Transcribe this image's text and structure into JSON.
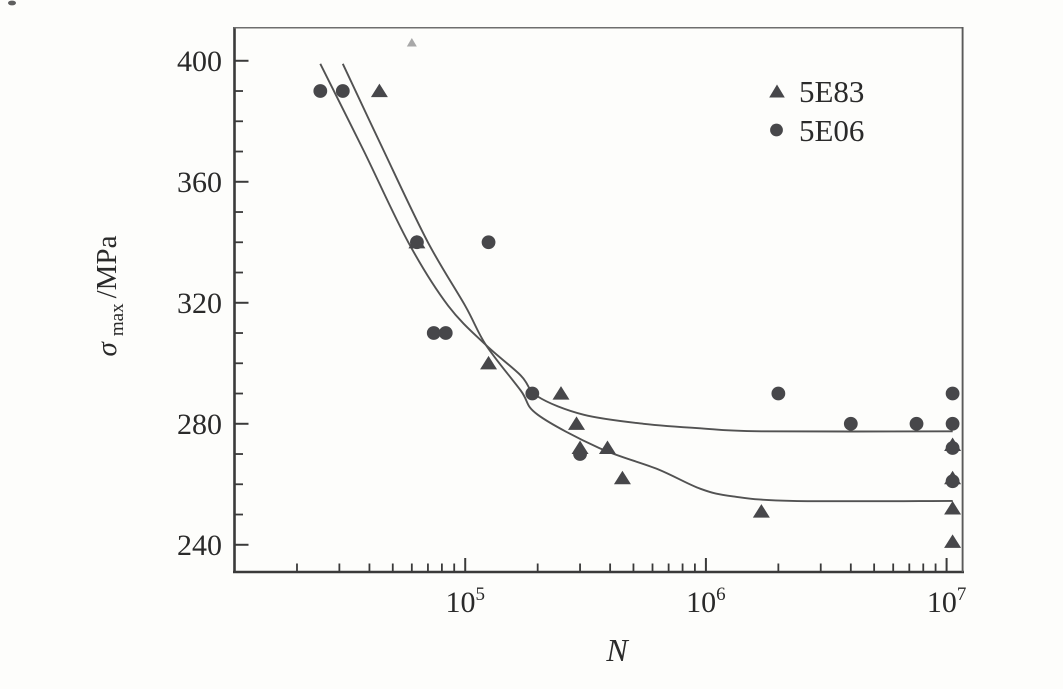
{
  "figure": {
    "background": "#fdfdfb",
    "axis_color": "#3a3a3a",
    "text_color": "#2a2a2a",
    "marker_color": "#47474a",
    "curve_color": "#525252",
    "faint_marker_color": "#a8a8a8",
    "y_axis": {
      "sigma": "σ",
      "sigma_sub": "max",
      "unit": "/MPa"
    },
    "x_axis": {
      "title": "N"
    }
  },
  "chart_data": {
    "type": "scatter",
    "title": "",
    "xlabel": "N",
    "ylabel": "σmax/MPa",
    "x_scale": "log",
    "xlim": [
      11000,
      11700000
    ],
    "ylim": [
      231,
      411
    ],
    "x_major_ticks": [
      100000,
      1000000,
      10000000
    ],
    "x_minor_tick_multipliers": [
      2,
      3,
      4,
      5,
      6,
      7,
      8,
      9
    ],
    "y_major_ticks": [
      240,
      280,
      320,
      360,
      400
    ],
    "y_minor_step": 10,
    "grid": false,
    "legend_position": "top-right-inside",
    "series": [
      {
        "name": "5E83",
        "marker": "triangle",
        "points": [
          [
            44000,
            390
          ],
          [
            63000,
            340
          ],
          [
            125000,
            300
          ],
          [
            250000,
            290
          ],
          [
            290000,
            280
          ],
          [
            300000,
            272
          ],
          [
            390000,
            272
          ],
          [
            450000,
            262
          ],
          [
            1700000,
            251
          ],
          [
            10000000,
            273
          ],
          [
            10000000,
            262
          ],
          [
            10000000,
            252
          ],
          [
            10000000,
            241
          ]
        ],
        "fit_curve": [
          [
            31000,
            399
          ],
          [
            46000,
            370
          ],
          [
            70000,
            340
          ],
          [
            100000,
            319
          ],
          [
            122000,
            306
          ],
          [
            170000,
            291
          ],
          [
            200000,
            283
          ],
          [
            360000,
            272
          ],
          [
            630000,
            265
          ],
          [
            950000,
            258.5
          ],
          [
            1300000,
            256
          ],
          [
            2300000,
            254.5
          ],
          [
            10600000,
            254.5
          ]
        ],
        "fatigue_limit_mpa": 254.5
      },
      {
        "name": "5E06",
        "marker": "circle",
        "points": [
          [
            25000,
            390
          ],
          [
            31000,
            390
          ],
          [
            63000,
            340
          ],
          [
            74000,
            310
          ],
          [
            83000,
            310
          ],
          [
            125000,
            340
          ],
          [
            190000,
            290
          ],
          [
            300000,
            270
          ],
          [
            2000000,
            290
          ],
          [
            4000000,
            280
          ],
          [
            7500000,
            280
          ],
          [
            10000000,
            290
          ],
          [
            10000000,
            280
          ],
          [
            10000000,
            272
          ],
          [
            10000000,
            261
          ]
        ],
        "fit_curve": [
          [
            25000,
            399
          ],
          [
            38000,
            370
          ],
          [
            58000,
            340
          ],
          [
            85000,
            319
          ],
          [
            122000,
            306
          ],
          [
            170000,
            296
          ],
          [
            200000,
            289
          ],
          [
            310000,
            283
          ],
          [
            550000,
            280
          ],
          [
            950000,
            278.5
          ],
          [
            1700000,
            277.5
          ],
          [
            10600000,
            277.5
          ]
        ],
        "fatigue_limit_mpa": 277.5
      }
    ],
    "outlier_point": {
      "series": "5E83",
      "point": [
        60000,
        406
      ],
      "style": "small-faint-triangle"
    }
  }
}
